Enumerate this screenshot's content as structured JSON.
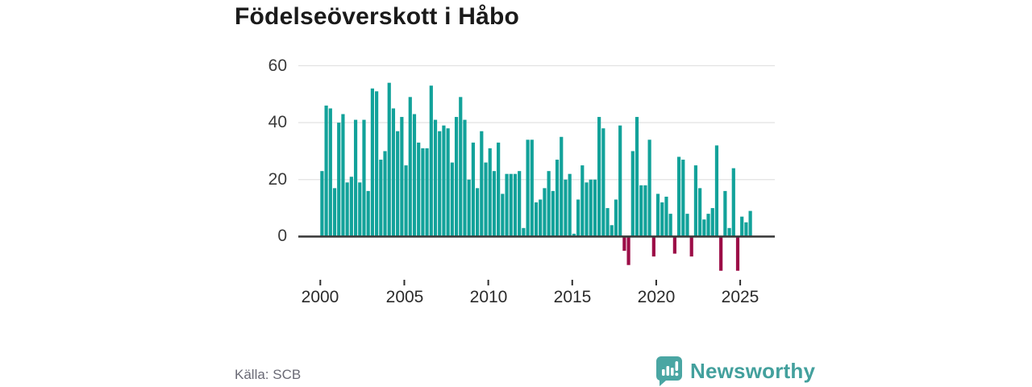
{
  "title": "Födelseöverskott i Håbo",
  "source": "Källa: SCB",
  "brand": {
    "name": "Newsworthy",
    "icon": "newsworthy-speech-bubble-chart-icon"
  },
  "colors": {
    "bar_positive": "#12a29a",
    "bar_negative": "#9c0d47",
    "axis_line": "#3b3b3b",
    "gridline": "#e3e3e3",
    "brand_teal": "#45a3a0",
    "title_text": "#1a1a1a",
    "muted_text": "#6a6a75"
  },
  "chart_data": {
    "type": "bar",
    "title": "Födelseöverskott i Håbo",
    "xlabel": "",
    "ylabel": "",
    "frequency": "quarterly",
    "first_period": "2000-Q1",
    "last_period": "2025-Q3",
    "x_tick_labels": [
      "2000",
      "2005",
      "2010",
      "2015",
      "2020",
      "2025"
    ],
    "y_ticks": [
      0,
      20,
      40,
      60
    ],
    "ylim": [
      -14,
      62
    ],
    "grid": "horizontal",
    "legend": "none",
    "values": [
      23,
      46,
      45,
      17,
      40,
      43,
      19,
      21,
      41,
      19,
      41,
      16,
      52,
      51,
      27,
      30,
      54,
      45,
      37,
      42,
      25,
      49,
      43,
      33,
      31,
      31,
      53,
      41,
      37,
      39,
      38,
      26,
      42,
      49,
      41,
      20,
      33,
      17,
      37,
      26,
      31,
      23,
      33,
      15,
      22,
      22,
      22,
      23,
      3,
      34,
      34,
      12,
      13,
      17,
      23,
      16,
      27,
      35,
      20,
      22,
      1,
      13,
      25,
      19,
      20,
      20,
      42,
      38,
      10,
      4,
      13,
      39,
      -5,
      -10,
      30,
      42,
      18,
      18,
      34,
      -7,
      15,
      12,
      14,
      8,
      -6,
      28,
      27,
      8,
      -7,
      25,
      17,
      6,
      8,
      10,
      32,
      -12,
      16,
      3,
      24,
      -12,
      7,
      5,
      9
    ]
  }
}
